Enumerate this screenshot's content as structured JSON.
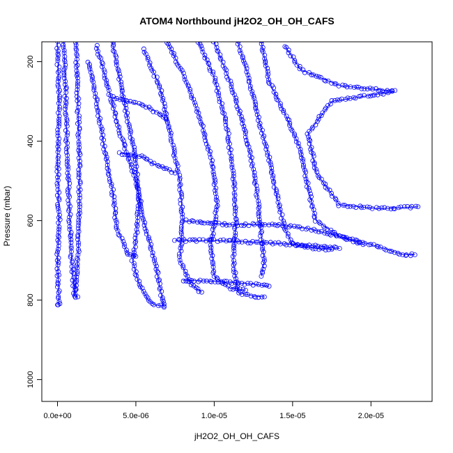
{
  "chart_data": {
    "type": "scatter",
    "title": "ATOM4 Northbound jH2O2_OH_OH_CAFS",
    "xlabel": "jH2O2_OH_OH_CAFS",
    "ylabel": "Pressure (mbar)",
    "xlim": [
      -1e-06,
      2.39e-05
    ],
    "ylim": [
      1055,
      150
    ],
    "y_reversed": true,
    "x_ticks": [
      {
        "value": 0,
        "label": "0.0e+00"
      },
      {
        "value": 5e-06,
        "label": "5.0e-06"
      },
      {
        "value": 1e-05,
        "label": "1.0e-05"
      },
      {
        "value": 1.5e-05,
        "label": "1.5e-05"
      },
      {
        "value": 2e-05,
        "label": "2.0e-05"
      }
    ],
    "y_ticks": [
      {
        "value": 200,
        "label": "200"
      },
      {
        "value": 400,
        "label": "400"
      },
      {
        "value": 600,
        "label": "600"
      },
      {
        "value": 800,
        "label": "800"
      },
      {
        "value": 1000,
        "label": "1000"
      }
    ],
    "marker": "open-circle",
    "connected": true,
    "color": "#0000ff",
    "grid": false,
    "series": [
      {
        "points": [
          [
            0.0,
            150
          ],
          [
            1e-07,
            300
          ],
          [
            0.0,
            450
          ],
          [
            1e-07,
            600
          ],
          [
            0.0,
            700
          ],
          [
            1e-07,
            810
          ],
          [
            0.0,
            812
          ]
        ]
      },
      {
        "points": [
          [
            4e-07,
            150
          ],
          [
            5e-07,
            250
          ],
          [
            6e-07,
            400
          ],
          [
            7e-07,
            500
          ],
          [
            8e-07,
            620
          ],
          [
            9e-07,
            700
          ],
          [
            1.1e-06,
            790
          ],
          [
            1.3e-06,
            792
          ]
        ]
      },
      {
        "points": [
          [
            1.2e-06,
            150
          ],
          [
            1.3e-06,
            300
          ],
          [
            1.4e-06,
            450
          ],
          [
            1.4e-06,
            600
          ],
          [
            1.3e-06,
            700
          ],
          [
            1.1e-06,
            790
          ]
        ]
      },
      {
        "points": [
          [
            2e-06,
            200
          ],
          [
            2.5e-06,
            300
          ],
          [
            3e-06,
            420
          ],
          [
            3.5e-06,
            520
          ],
          [
            3.8e-06,
            620
          ],
          [
            4.5e-06,
            685
          ],
          [
            5e-06,
            690
          ]
        ]
      },
      {
        "points": [
          [
            3.5e-06,
            150
          ],
          [
            4e-06,
            250
          ],
          [
            4.5e-06,
            350
          ],
          [
            5e-06,
            450
          ],
          [
            5.2e-06,
            550
          ],
          [
            5e-06,
            650
          ],
          [
            4.8e-06,
            700
          ],
          [
            5.2e-06,
            760
          ],
          [
            5.8e-06,
            800
          ],
          [
            6.2e-06,
            812
          ],
          [
            6.8e-06,
            815
          ]
        ]
      },
      {
        "points": [
          [
            2.5e-06,
            160
          ],
          [
            3.2e-06,
            260
          ],
          [
            4e-06,
            380
          ],
          [
            5e-06,
            500
          ],
          [
            5.5e-06,
            600
          ],
          [
            6.2e-06,
            700
          ],
          [
            6.6e-06,
            780
          ],
          [
            6.8e-06,
            818
          ]
        ]
      },
      {
        "points": [
          [
            5.5e-06,
            170
          ],
          [
            6.5e-06,
            260
          ],
          [
            7.2e-06,
            380
          ],
          [
            7.8e-06,
            500
          ],
          [
            8e-06,
            600
          ],
          [
            7.8e-06,
            700
          ],
          [
            8.5e-06,
            760
          ],
          [
            9.2e-06,
            780
          ]
        ]
      },
      {
        "points": [
          [
            7e-06,
            150
          ],
          [
            8e-06,
            230
          ],
          [
            9e-06,
            330
          ],
          [
            9.8e-06,
            440
          ],
          [
            1.02e-05,
            560
          ],
          [
            9.8e-06,
            660
          ],
          [
            1e-05,
            740
          ],
          [
            1.1e-05,
            770
          ],
          [
            1.2e-05,
            775
          ]
        ]
      },
      {
        "points": [
          [
            9e-06,
            150
          ],
          [
            1e-05,
            240
          ],
          [
            1.08e-05,
            360
          ],
          [
            1.12e-05,
            480
          ],
          [
            1.14e-05,
            600
          ],
          [
            1.12e-05,
            700
          ],
          [
            1.15e-05,
            780
          ],
          [
            1.25e-05,
            790
          ],
          [
            1.32e-05,
            792
          ]
        ]
      },
      {
        "points": [
          [
            1e-05,
            150
          ],
          [
            1.1e-05,
            250
          ],
          [
            1.18e-05,
            350
          ],
          [
            1.24e-05,
            450
          ],
          [
            1.28e-05,
            550
          ],
          [
            1.3e-05,
            640
          ],
          [
            1.32e-05,
            700
          ],
          [
            1.3e-05,
            740
          ]
        ]
      },
      {
        "points": [
          [
            1.15e-05,
            150
          ],
          [
            1.22e-05,
            240
          ],
          [
            1.28e-05,
            340
          ],
          [
            1.35e-05,
            440
          ],
          [
            1.4e-05,
            540
          ],
          [
            1.45e-05,
            620
          ],
          [
            1.5e-05,
            660
          ],
          [
            1.65e-05,
            670
          ],
          [
            1.75e-05,
            672
          ]
        ]
      },
      {
        "points": [
          [
            1.3e-05,
            150
          ],
          [
            1.35e-05,
            250
          ],
          [
            1.45e-05,
            330
          ],
          [
            1.55e-05,
            420
          ],
          [
            1.6e-05,
            520
          ],
          [
            1.65e-05,
            600
          ],
          [
            1.8e-05,
            640
          ],
          [
            1.95e-05,
            660
          ]
        ]
      },
      {
        "points": [
          [
            1.45e-05,
            160
          ],
          [
            1.55e-05,
            220
          ],
          [
            1.8e-05,
            260
          ],
          [
            2.15e-05,
            275
          ],
          [
            1.75e-05,
            300
          ],
          [
            1.6e-05,
            380
          ],
          [
            1.65e-05,
            480
          ],
          [
            1.8e-05,
            560
          ],
          [
            2.05e-05,
            570
          ],
          [
            2.3e-05,
            565
          ]
        ]
      },
      {
        "points": [
          [
            8e-06,
            600
          ],
          [
            1.1e-05,
            610
          ],
          [
            1.4e-05,
            610
          ],
          [
            1.6e-05,
            620
          ],
          [
            1.8e-05,
            640
          ],
          [
            2e-05,
            660
          ],
          [
            2.2e-05,
            685
          ],
          [
            2.28e-05,
            686
          ]
        ]
      },
      {
        "points": [
          [
            7.5e-06,
            650
          ],
          [
            1e-05,
            650
          ],
          [
            1.3e-05,
            655
          ],
          [
            1.5e-05,
            660
          ],
          [
            1.7e-05,
            665
          ],
          [
            1.8e-05,
            670
          ]
        ]
      },
      {
        "points": [
          [
            4e-06,
            430
          ],
          [
            5.5e-06,
            440
          ],
          [
            6e-06,
            455
          ],
          [
            7e-06,
            470
          ],
          [
            7.5e-06,
            480
          ]
        ]
      },
      {
        "points": [
          [
            3.5e-06,
            290
          ],
          [
            4.5e-06,
            300
          ],
          [
            5.5e-06,
            310
          ],
          [
            6.5e-06,
            330
          ],
          [
            7e-06,
            350
          ]
        ]
      },
      {
        "points": [
          [
            8e-06,
            750
          ],
          [
            9.5e-06,
            752
          ],
          [
            1.1e-05,
            755
          ],
          [
            1.25e-05,
            760
          ],
          [
            1.35e-05,
            765
          ]
        ]
      }
    ]
  }
}
